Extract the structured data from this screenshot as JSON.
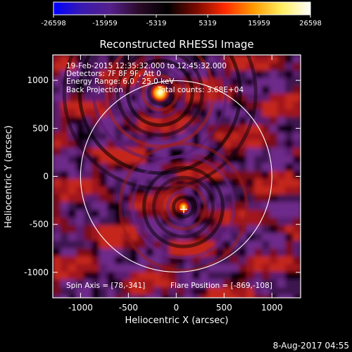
{
  "colorbar": {
    "tick_labels": [
      "-26598",
      "-15959",
      "-5319",
      "5319",
      "15959",
      "26598"
    ],
    "colors": [
      "#0000ff",
      "#3a1ab0",
      "#55208a",
      "#2a0a28",
      "#000000",
      "#7a0a00",
      "#ff2a00",
      "#ff9a00",
      "#ffee60",
      "#ffffff"
    ]
  },
  "title": "Reconstructed RHESSI Image",
  "annotations": {
    "time_range": "19-Feb-2015 12:35:32.000 to 12:45:32.000",
    "detectors": "Detectors: 7F 8F 9F, Att 0",
    "energy_range": "Energy Range: 6.0 - 25.0 keV",
    "method": "Back Projection",
    "total_counts": "Total counts: 3.68E+04",
    "spin_axis": "Spin Axis = [78,-341]",
    "flare_position": "Flare Position = [-869,-108]"
  },
  "axes": {
    "xlabel": "Heliocentric X (arcsec)",
    "ylabel": "Heliocentric Y (arcsec)",
    "xlim": [
      -1290,
      1300
    ],
    "ylim": [
      -1265,
      1265
    ],
    "xticks": [
      -1000,
      -500,
      0,
      500,
      1000
    ],
    "yticks": [
      -1000,
      -500,
      0,
      500,
      1000
    ]
  },
  "solar_limb": {
    "center": [
      0,
      0
    ],
    "radius_arcsec": 1000
  },
  "sources": [
    {
      "name": "north source",
      "x": -170,
      "y": 870,
      "intensity": 26598
    },
    {
      "name": "central source",
      "x": 75,
      "y": -320,
      "intensity": 18000
    }
  ],
  "marker": {
    "symbol": "+",
    "x": 78,
    "y": -341
  },
  "timestamp": "8-Aug-2017 04:55"
}
